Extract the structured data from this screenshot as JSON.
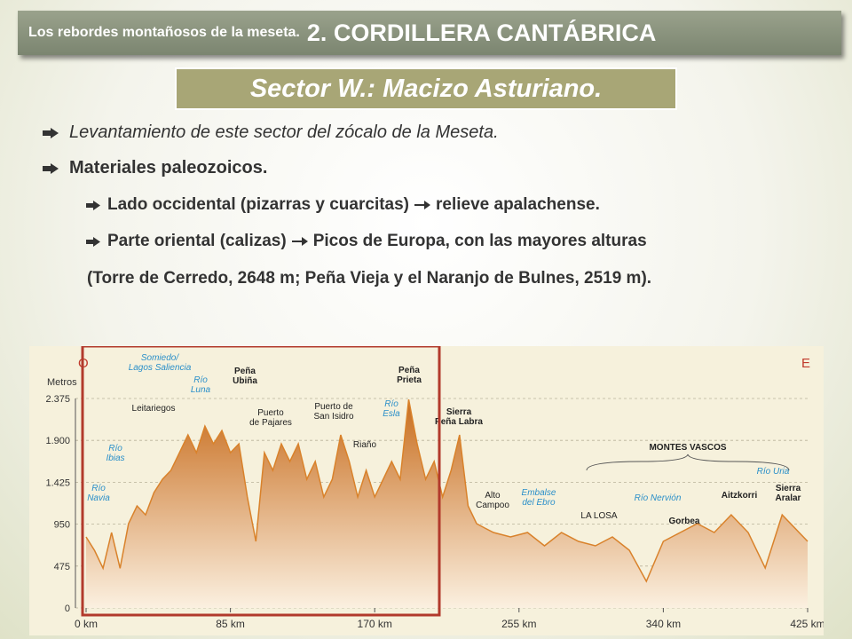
{
  "header": {
    "prefix": "Los rebordes montañosos de la meseta",
    "dot": ".",
    "title": "2. CORDILLERA CANTÁBRICA"
  },
  "subtitle": "Sector W.: Macizo Asturiano.",
  "bullets": [
    {
      "text": "Levantamiento de este sector del zócalo de la Meseta."
    },
    {
      "text": "Materiales paleozoicos."
    }
  ],
  "sub_bullets": [
    {
      "before": "Lado occidental (pizarras y cuarcitas)",
      "after": "relieve apalachense."
    },
    {
      "before": "Parte oriental (calizas)",
      "after": "Picos de Europa, con las mayores alturas"
    }
  ],
  "note": "(Torre de Cerredo, 2648 m; Peña Vieja y el Naranjo de Bulnes, 2519 m).",
  "figure": {
    "y_label": "Metros",
    "west": "O",
    "east": "E",
    "xlim": [
      0,
      425
    ],
    "ylim": [
      0,
      2375
    ],
    "yticks": [
      0,
      475,
      950,
      {
        "value": 1425,
        "label": "1.425"
      },
      {
        "value": 1900,
        "label": "1.900"
      },
      {
        "value": 2375,
        "label": "2.375"
      }
    ],
    "xticks": [
      {
        "value": 0,
        "label": "0 km"
      },
      {
        "value": 85,
        "label": "85 km"
      },
      {
        "value": 170,
        "label": "170 km"
      },
      {
        "value": 255,
        "label": "255 km"
      },
      {
        "value": 340,
        "label": "340 km"
      },
      {
        "value": 425,
        "label": "425 km"
      }
    ],
    "x": [
      0,
      5,
      10,
      15,
      20,
      25,
      30,
      35,
      40,
      45,
      50,
      55,
      60,
      65,
      70,
      75,
      80,
      85,
      90,
      95,
      100,
      105,
      110,
      115,
      120,
      125,
      130,
      135,
      140,
      145,
      150,
      155,
      160,
      165,
      170,
      175,
      180,
      185,
      190,
      195,
      200,
      205,
      210,
      215,
      220,
      225,
      230,
      235,
      240,
      250,
      260,
      270,
      280,
      290,
      300,
      310,
      320,
      330,
      340,
      350,
      360,
      370,
      380,
      390,
      400,
      410,
      420,
      425
    ],
    "values": [
      805,
      650,
      450,
      855,
      450,
      955,
      1157,
      1056,
      1308,
      1459,
      1560,
      1760,
      1962,
      1760,
      2062,
      1861,
      2012,
      1760,
      1861,
      1258,
      755,
      1760,
      1560,
      1861,
      1660,
      1861,
      1459,
      1660,
      1258,
      1459,
      1962,
      1660,
      1258,
      1560,
      1258,
      1459,
      1660,
      1459,
      2364,
      1861,
      1459,
      1660,
      1258,
      1560,
      1962,
      1157,
      956,
      905,
      855,
      805,
      855,
      704,
      855,
      755,
      704,
      805,
      654,
      302,
      755,
      855,
      956,
      855,
      1056,
      855,
      453,
      1056,
      855,
      755
    ],
    "fill": "#d9822b",
    "labels": [
      {
        "lines": [
          "Somiedo/",
          "Lagos Saliencia"
        ],
        "color": "#2a8fc9"
      },
      {
        "lines": [
          "Río",
          "Luna"
        ],
        "color": "#2a8fc9"
      },
      {
        "lines": [
          "Peña",
          "Ubiña"
        ],
        "color": "#222222",
        "bold": true
      },
      {
        "lines": [
          "Leitariegos"
        ],
        "color": "#222222"
      },
      {
        "lines": [
          "Puerto",
          "de Pajares"
        ],
        "color": "#222222"
      },
      {
        "lines": [
          "Puerto de",
          "San Isidro"
        ],
        "color": "#222222"
      },
      {
        "lines": [
          "Riaño"
        ],
        "color": "#222222"
      },
      {
        "lines": [
          "Peña",
          "Prieta"
        ],
        "color": "#222222",
        "bold": true
      },
      {
        "lines": [
          "Río",
          "Esla"
        ],
        "color": "#2a8fc9"
      },
      {
        "lines": [
          "Sierra",
          "Peña Labra"
        ],
        "color": "#222222",
        "bold": true
      },
      {
        "lines": [
          "Río",
          "Ibias"
        ],
        "color": "#2a8fc9"
      },
      {
        "lines": [
          "Río",
          "Navia"
        ],
        "color": "#2a8fc9"
      },
      {
        "lines": [
          "Alto",
          "Campoo"
        ],
        "color": "#222222"
      },
      {
        "lines": [
          "Embalse",
          "del Ebro"
        ],
        "color": "#2a8fc9"
      },
      {
        "lines": [
          "LA LOSA"
        ],
        "color": "#222222"
      },
      {
        "lines": [
          "Río Nervión"
        ],
        "color": "#2a8fc9"
      },
      {
        "lines": [
          "Gorbea"
        ],
        "color": "#222222",
        "bold": true
      },
      {
        "lines": [
          "MONTES VASCOS"
        ],
        "color": "#222222",
        "bold": true
      },
      {
        "lines": [
          "Aitzkorri"
        ],
        "color": "#222222",
        "bold": true
      },
      {
        "lines": [
          "Río Uria"
        ],
        "color": "#2a8fc9"
      },
      {
        "lines": [
          "Sierra",
          "Aralar"
        ],
        "color": "#222222",
        "bold": true
      }
    ]
  }
}
